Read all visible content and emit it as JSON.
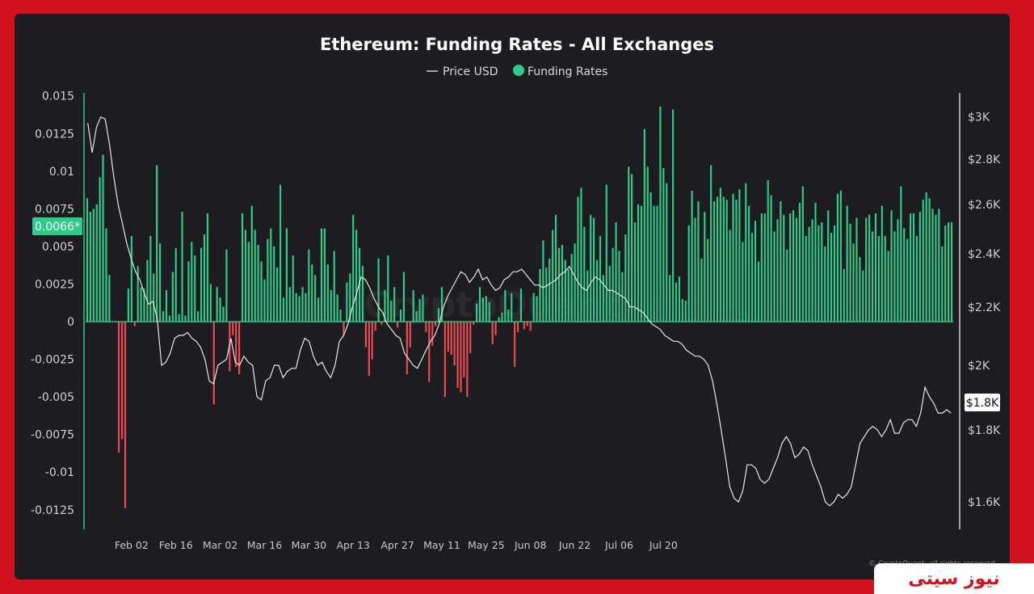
{
  "page": {
    "brand": "نیوز سیتی",
    "watermark": "CryptoQuant"
  },
  "chart_data": {
    "type": "bar+line",
    "title": "Ethereum: Funding Rates - All Exchanges",
    "legend": [
      {
        "name": "Price USD",
        "kind": "line",
        "color": "#cfcfcf"
      },
      {
        "name": "Funding Rates",
        "kind": "dot",
        "color": "#2ecc8a"
      }
    ],
    "legend_position": "top-center",
    "positive_color": "#2ecc8a",
    "negative_color": "#ef4b55",
    "grid": false,
    "left_axis": {
      "min": -0.0138,
      "max": 0.0152,
      "ticks": [
        0.015,
        0.0125,
        0.01,
        0.0075,
        0.005,
        0.0025,
        0,
        -0.0025,
        -0.005,
        -0.0075,
        -0.01,
        -0.0125
      ],
      "tick_labels": [
        "0.015",
        "0.0125",
        "0.01",
        "0.0075",
        "0.005",
        "0.0025",
        "0",
        "-0.0025",
        "-0.005",
        "-0.0075",
        "-0.01",
        "-0.0125"
      ],
      "current_label": "0.0066*",
      "current_value": 0.0066
    },
    "right_axis": {
      "scale": "log",
      "min": 1530,
      "max": 3120,
      "ticks": [
        3000,
        2800,
        2600,
        2400,
        2200,
        2000,
        1800,
        1600
      ],
      "tick_labels": [
        "$3K",
        "$2.8K",
        "$2.6K",
        "$2.4K",
        "$2.2K",
        "$2K",
        "$1.8K",
        "$1.6K"
      ],
      "current_label": "$1.8K",
      "current_value": 1850
    },
    "x_axis": {
      "labels": [
        "Feb 02",
        "Feb 16",
        "Mar 02",
        "Mar 16",
        "Mar 30",
        "Apr 13",
        "Apr 27",
        "May 11",
        "May 25",
        "Jun 08",
        "Jun 22",
        "Jul 06",
        "Jul 20"
      ],
      "label_index": [
        14,
        28,
        42,
        56,
        70,
        84,
        98,
        112,
        126,
        140,
        154,
        168,
        182
      ]
    },
    "funding_rates": [
      0.0082,
      0.0073,
      0.0075,
      0.0078,
      0.0096,
      0.0111,
      0.0062,
      0.0031,
      0,
      0,
      -0.0087,
      -0.0078,
      -0.0124,
      0.0022,
      0.0057,
      -0.0003,
      0.0037,
      0.0023,
      0.0022,
      0.0041,
      0.0057,
      0.0032,
      0.0104,
      0.0052,
      0.0007,
      0.0021,
      0.0004,
      0.0033,
      0.0049,
      0.0005,
      0.0073,
      0.0004,
      0.004,
      0.0053,
      0.0044,
      0.0007,
      0.0049,
      0.0058,
      0.0072,
      0.0025,
      -0.0055,
      0.0023,
      0.0016,
      0.001,
      0.0048,
      -0.0033,
      -0.0009,
      -0.003,
      -0.0035,
      0.0072,
      0.0061,
      0.0053,
      0.0077,
      0.0061,
      0.0051,
      0.004,
      0.0028,
      0.0055,
      0.0062,
      0.005,
      0.0036,
      0.0091,
      0.0016,
      0.0062,
      0.0023,
      0.0044,
      0.0019,
      0.0017,
      0.0023,
      0.0019,
      0.0048,
      0.0038,
      0.0031,
      0.0016,
      0.0062,
      0.0062,
      0.0038,
      0.0021,
      0.0047,
      0.0018,
      0.0008,
      -0.0009,
      0.0026,
      0.0032,
      0.0071,
      0.0061,
      0.0049,
      0.0037,
      -0.0017,
      -0.0036,
      -0.0025,
      -0.0006,
      0.0042,
      -0.0002,
      0.0021,
      0.0044,
      0.0014,
      0.0023,
      -0.0004,
      0.0008,
      0.0033,
      -0.0035,
      -0.0017,
      0.0021,
      0.0007,
      0.0015,
      0.0018,
      -0.0007,
      -0.004,
      -0.0016,
      -0.0003,
      0.0009,
      0.0023,
      -0.005,
      -0.002,
      -0.0022,
      -0.0029,
      -0.0044,
      -0.0047,
      -0.0037,
      -0.005,
      -0.0021,
      -0.0002,
      0.0012,
      0.0023,
      0.0016,
      0.0017,
      0.0013,
      -0.0015,
      -0.0009,
      0.0003,
      0.0006,
      0.0021,
      0.0008,
      0.0019,
      -0.003,
      -0.0007,
      0.0022,
      -0.0005,
      -0.0003,
      -0.0006,
      0.0019,
      0.0017,
      0.0035,
      0.0054,
      0.0036,
      0.0042,
      0.0061,
      0.0071,
      0.0049,
      0.0051,
      0.0041,
      0.0035,
      0.0045,
      0.0052,
      0.0083,
      0.0089,
      0.0063,
      0.0034,
      0.0071,
      0.0069,
      0.0041,
      0.0057,
      0.0031,
      0.0091,
      0.0037,
      0.0049,
      0.0066,
      0.0047,
      0.0033,
      0.0058,
      0.0103,
      0.0098,
      0.0066,
      0.0078,
      0.0077,
      0.0128,
      0.0103,
      0.0086,
      0.0077,
      0.0077,
      0.0143,
      0.0102,
      0.0092,
      0.0031,
      0.0141,
      0.0026,
      0.003,
      0.0015,
      0.0014,
      0.0064,
      0.0087,
      0.0069,
      0.008,
      0.0042,
      0.0073,
      0.0055,
      0.0104,
      0.008,
      0.0083,
      0.0089,
      0.0083,
      0.0081,
      0.0061,
      0.0085,
      0.0081,
      0.0088,
      0.0053,
      0.0092,
      0.0077,
      0.0059,
      0.0067,
      0.004,
      0.0072,
      0.0072,
      0.0094,
      0.0084,
      0.006,
      0.0068,
      0.008,
      0.0071,
      0.0048,
      0.0072,
      0.0074,
      0.0069,
      0.0079,
      0.009,
      0.0057,
      0.0063,
      0.0068,
      0.0079,
      0.0064,
      0.0066,
      0.005,
      0.0074,
      0.0059,
      0.0064,
      0.0085,
      0.0087,
      0.0035,
      0.0077,
      0.0065,
      0.0052,
      0.0069,
      0.0043,
      0.0034,
      0.0069,
      0.0071,
      0.006,
      0.0072,
      0.0057,
      0.0077,
      0.0057,
      0.0047,
      0.0074,
      0.006,
      0.0068,
      0.009,
      0.0062,
      0.0055,
      0.0072,
      0.0072,
      0.0057,
      0.0073,
      0.0081,
      0.0086,
      0.0082,
      0.0075,
      0.0071,
      0.0075,
      0.005,
      0.0064,
      0.0066,
      0.0066
    ],
    "price_usd": [
      2970,
      2830,
      2950,
      3000,
      2990,
      2870,
      2720,
      2600,
      2520,
      2440,
      2380,
      2330,
      2300,
      2250,
      2210,
      2220,
      2160,
      2000,
      2010,
      2040,
      2090,
      2100,
      2100,
      2110,
      2090,
      2080,
      2060,
      2020,
      1950,
      1940,
      2000,
      2010,
      2020,
      2090,
      2010,
      2000,
      2030,
      2010,
      2000,
      1900,
      1890,
      1950,
      1960,
      2000,
      2000,
      1960,
      1980,
      1990,
      1990,
      2050,
      2090,
      2080,
      2030,
      2000,
      2010,
      1980,
      1960,
      2000,
      2080,
      2100,
      2140,
      2200,
      2250,
      2310,
      2300,
      2270,
      2230,
      2200,
      2180,
      2140,
      2120,
      2100,
      2090,
      2040,
      2020,
      2000,
      1990,
      2020,
      2050,
      2080,
      2100,
      2140,
      2200,
      2240,
      2270,
      2300,
      2330,
      2320,
      2290,
      2310,
      2340,
      2300,
      2310,
      2280,
      2260,
      2270,
      2300,
      2310,
      2330,
      2330,
      2340,
      2320,
      2300,
      2280,
      2280,
      2270,
      2280,
      2290,
      2300,
      2320,
      2330,
      2350,
      2320,
      2290,
      2270,
      2260,
      2290,
      2310,
      2300,
      2280,
      2260,
      2260,
      2250,
      2240,
      2230,
      2200,
      2200,
      2190,
      2180,
      2160,
      2140,
      2130,
      2120,
      2100,
      2090,
      2080,
      2080,
      2070,
      2050,
      2040,
      2030,
      2030,
      2020,
      2000,
      1950,
      1880,
      1800,
      1720,
      1640,
      1610,
      1600,
      1630,
      1700,
      1700,
      1690,
      1660,
      1650,
      1660,
      1690,
      1720,
      1760,
      1780,
      1760,
      1720,
      1730,
      1750,
      1740,
      1700,
      1670,
      1640,
      1600,
      1590,
      1600,
      1620,
      1610,
      1620,
      1640,
      1700,
      1760,
      1780,
      1800,
      1810,
      1800,
      1780,
      1800,
      1830,
      1790,
      1790,
      1820,
      1830,
      1830,
      1810,
      1850,
      1930,
      1900,
      1880,
      1850,
      1850,
      1860,
      1850
    ]
  }
}
